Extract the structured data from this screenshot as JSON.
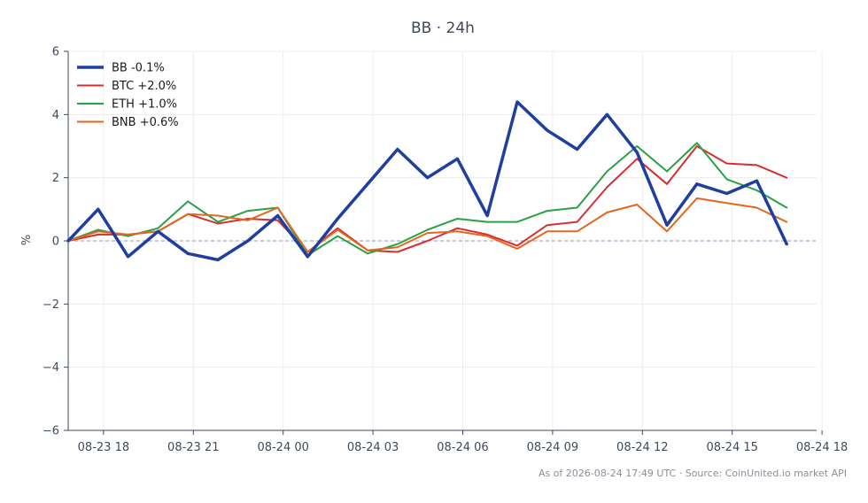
{
  "chart_data": {
    "type": "line",
    "title": "BB · 24h",
    "xlabel": "",
    "ylabel": "%",
    "x_unit": "hours since 08-23 16:49",
    "x": [
      0,
      1,
      2,
      3,
      4,
      5,
      6,
      7,
      8,
      9,
      10,
      11,
      12,
      13,
      14,
      15,
      16,
      17,
      18,
      19,
      20,
      21,
      22,
      23,
      24
    ],
    "xlim": [
      0,
      25
    ],
    "x_ticks": [
      {
        "x": 1.18,
        "label": "08-23 18"
      },
      {
        "x": 4.18,
        "label": "08-23 21"
      },
      {
        "x": 7.18,
        "label": "08-24 00"
      },
      {
        "x": 10.18,
        "label": "08-24 03"
      },
      {
        "x": 13.18,
        "label": "08-24 06"
      },
      {
        "x": 16.18,
        "label": "08-24 09"
      },
      {
        "x": 19.18,
        "label": "08-24 12"
      },
      {
        "x": 22.18,
        "label": "08-24 15"
      },
      {
        "x": 25.18,
        "label": "08-24 18"
      }
    ],
    "ylim": [
      -6,
      6
    ],
    "y_ticks": [
      {
        "v": -6,
        "label": "−6"
      },
      {
        "v": -4,
        "label": "−4"
      },
      {
        "v": -2,
        "label": "−2"
      },
      {
        "v": 0,
        "label": "0"
      },
      {
        "v": 2,
        "label": "2"
      },
      {
        "v": 4,
        "label": "4"
      },
      {
        "v": 6,
        "label": "6"
      }
    ],
    "grid": true,
    "zero_line": true,
    "legend_position": "top-left",
    "series": [
      {
        "name": "BB -0.1%",
        "color": "#1f3fa0",
        "values": [
          0,
          1.0,
          -0.5,
          0.3,
          -0.4,
          -0.6,
          0.0,
          0.8,
          -0.5,
          0.7,
          1.8,
          2.9,
          2.0,
          2.6,
          0.8,
          4.4,
          3.5,
          2.9,
          4.0,
          2.8,
          0.5,
          1.8,
          1.5,
          1.9,
          -0.1
        ]
      },
      {
        "name": "BTC +2.0%",
        "color": "#d62f2f",
        "values": [
          0,
          0.2,
          0.2,
          0.3,
          0.85,
          0.55,
          0.7,
          0.65,
          -0.35,
          0.4,
          -0.3,
          -0.35,
          0.0,
          0.4,
          0.2,
          -0.15,
          0.5,
          0.6,
          1.7,
          2.6,
          1.8,
          3.0,
          2.45,
          2.4,
          2.0
        ]
      },
      {
        "name": "ETH +1.0%",
        "color": "#2ca044",
        "values": [
          0,
          0.35,
          0.15,
          0.4,
          1.25,
          0.6,
          0.95,
          1.05,
          -0.45,
          0.15,
          -0.4,
          -0.1,
          0.35,
          0.7,
          0.6,
          0.6,
          0.95,
          1.05,
          2.2,
          3.0,
          2.2,
          3.1,
          1.95,
          1.6,
          1.05
        ]
      },
      {
        "name": "BNB +0.6%",
        "color": "#e5651f",
        "values": [
          0,
          0.3,
          0.2,
          0.3,
          0.85,
          0.8,
          0.65,
          1.05,
          -0.35,
          0.35,
          -0.3,
          -0.2,
          0.25,
          0.3,
          0.15,
          -0.25,
          0.3,
          0.3,
          0.9,
          1.15,
          0.3,
          1.35,
          1.2,
          1.05,
          0.6
        ]
      }
    ]
  },
  "footer": {
    "text": "As of 2026-08-24 17:49 UTC · Source: CoinUnited.io market API"
  }
}
